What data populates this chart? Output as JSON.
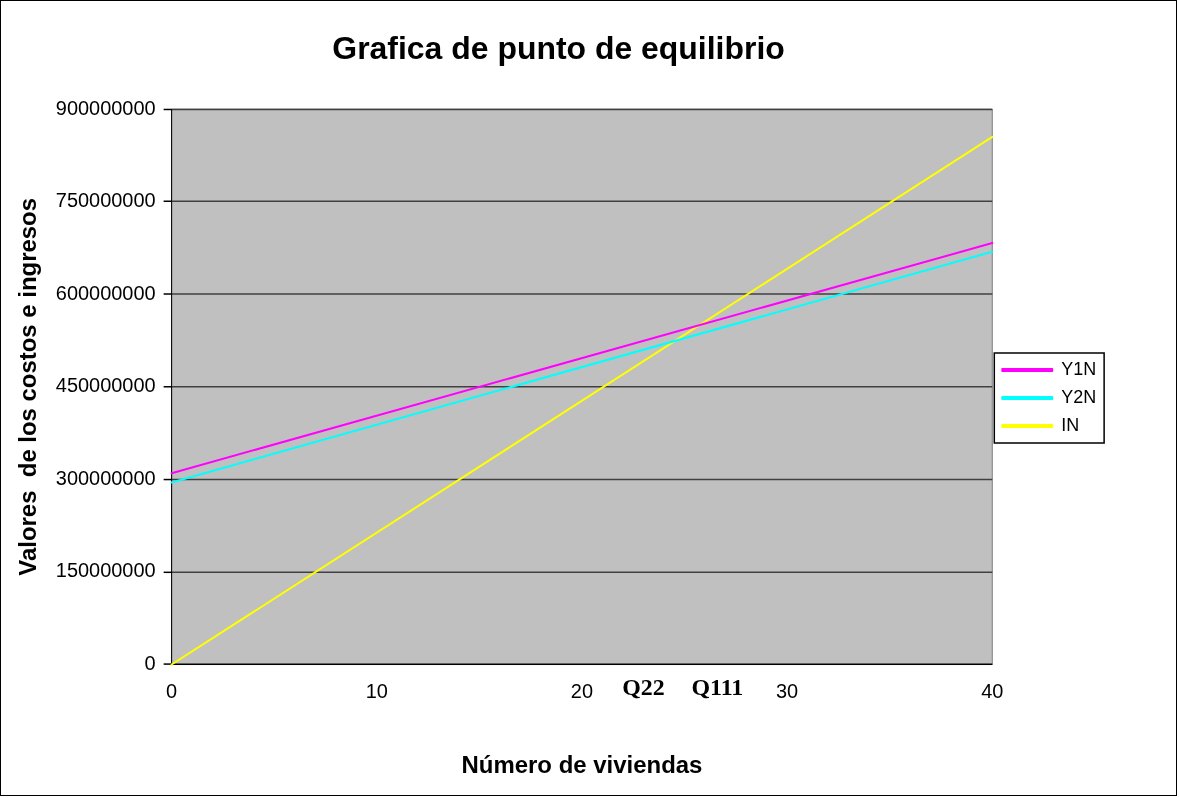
{
  "chart_data": {
    "type": "line",
    "title": "Grafica de punto de equilibrio",
    "xlabel": "Número de viviendas",
    "ylabel": "Valores  de los costos e ingresos",
    "x": [
      0,
      40
    ],
    "series": [
      {
        "name": "Y1N",
        "color": "#ff00ff",
        "values": [
          310000000,
          683000000
        ]
      },
      {
        "name": "Y2N",
        "color": "#00ffff",
        "values": [
          295000000,
          669000000
        ]
      },
      {
        "name": "IN",
        "color": "#ffff00",
        "values": [
          0,
          855000000
        ]
      }
    ],
    "xlim": [
      0,
      40
    ],
    "xticks": [
      0,
      10,
      20,
      30,
      40
    ],
    "ylim": [
      0,
      900000000
    ],
    "yticks": [
      0,
      150000000,
      300000000,
      450000000,
      600000000,
      750000000,
      900000000
    ],
    "grid": "y",
    "legend": "right",
    "marker": "none",
    "line_style": "solid",
    "annotations": [
      "Q22",
      "Q111"
    ]
  }
}
